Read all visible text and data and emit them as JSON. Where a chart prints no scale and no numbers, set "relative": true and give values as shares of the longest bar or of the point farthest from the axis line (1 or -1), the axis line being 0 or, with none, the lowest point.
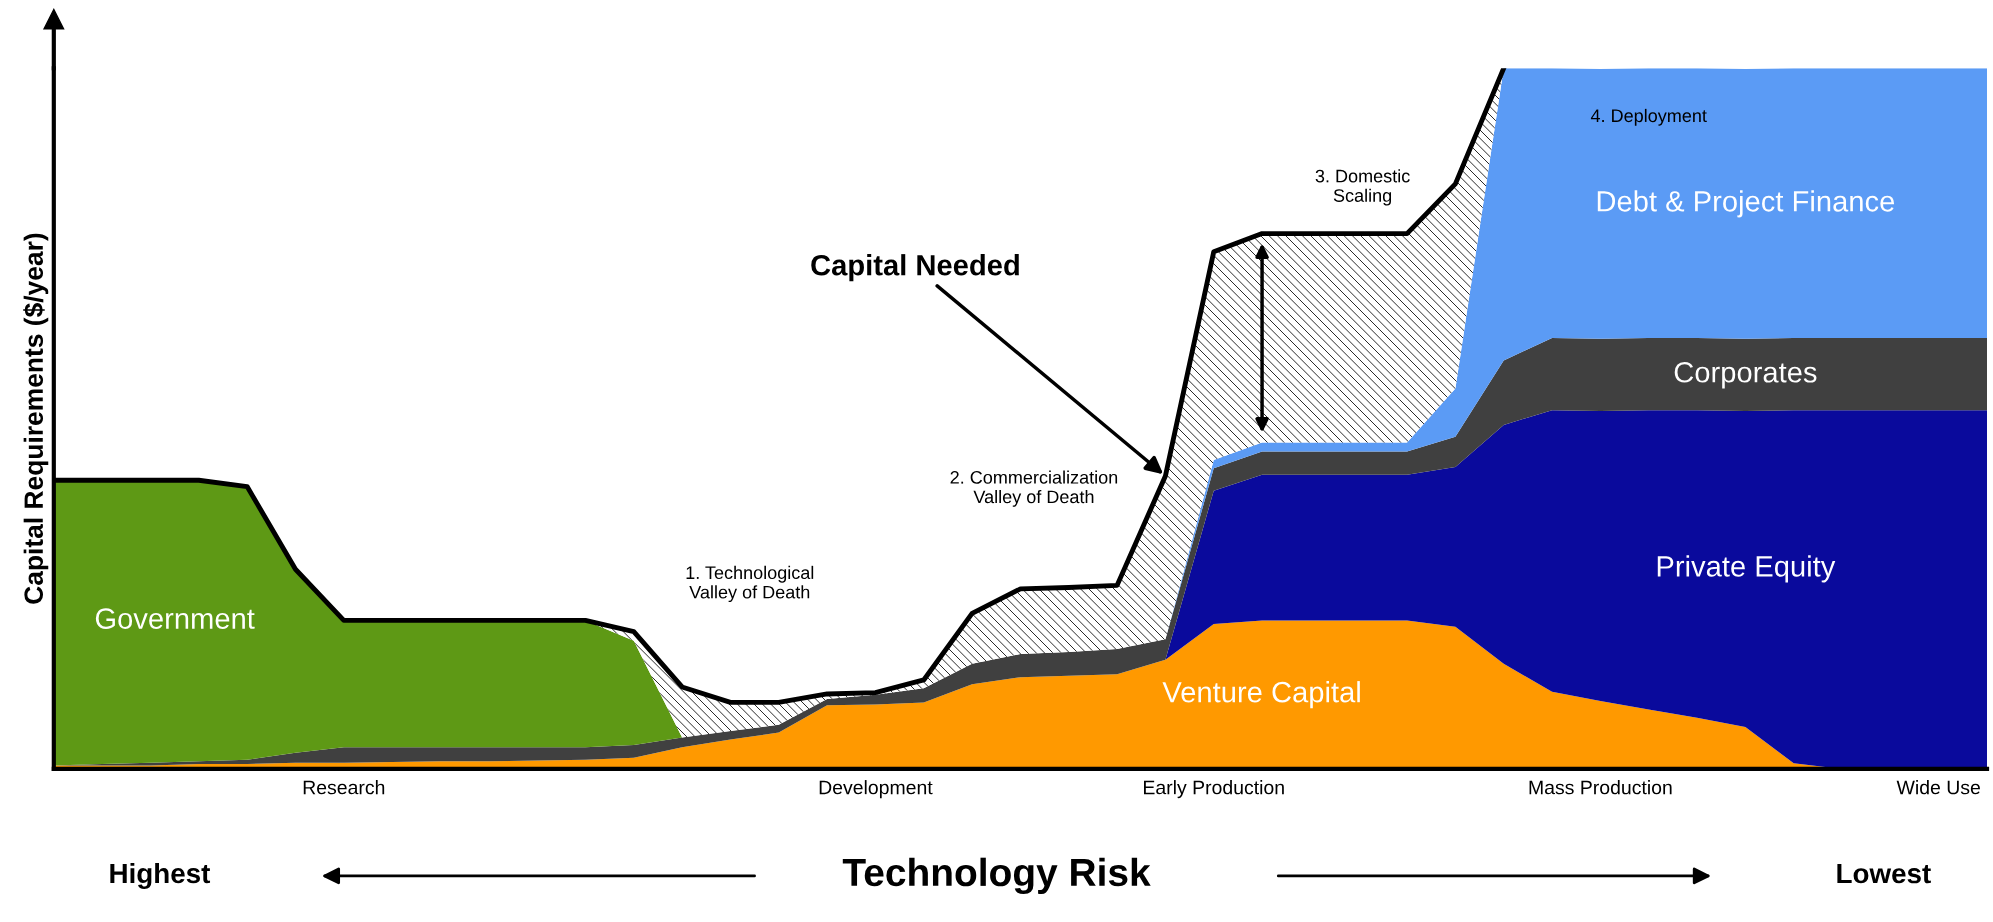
{
  "chart_data": {
    "type": "area",
    "stacked": true,
    "relative": true,
    "legend": false,
    "tick_labels": "x",
    "grid": false,
    "ylabel": "Capital Requirements ($/year)",
    "xlabel": "Technology Risk",
    "categories": [
      null,
      null,
      null,
      null,
      null,
      null,
      "Research",
      null,
      null,
      null,
      null,
      null,
      null,
      null,
      null,
      null,
      null,
      "Development",
      null,
      null,
      null,
      null,
      null,
      null,
      "Early Production",
      null,
      null,
      null,
      null,
      null,
      null,
      null,
      "Mass Production",
      null,
      null,
      null,
      null,
      null,
      null,
      "Wide Use",
      null
    ],
    "series": [
      {
        "name": "Venture Capital",
        "color": "#ff9900",
        "values": [
          0.005,
          0.005,
          0.005,
          0.007,
          0.007,
          0.009,
          0.009,
          0.01,
          0.011,
          0.011,
          0.012,
          0.013,
          0.016,
          0.031,
          0.042,
          0.052,
          0.091,
          0.092,
          0.095,
          0.121,
          0.131,
          0.133,
          0.135,
          0.156,
          0.207,
          0.212,
          0.212,
          0.212,
          0.212,
          0.203,
          0.15,
          0.11,
          0.097,
          0.085,
          0.073,
          0.06,
          0.008,
          0,
          null,
          null,
          null
        ]
      },
      {
        "name": "Private Equity",
        "color": "#0a0a9c",
        "values": [
          null,
          null,
          null,
          null,
          null,
          null,
          null,
          null,
          null,
          null,
          null,
          null,
          null,
          null,
          null,
          null,
          null,
          null,
          null,
          null,
          null,
          null,
          null,
          0,
          0.19,
          0.208,
          0.208,
          0.208,
          0.208,
          0.228,
          0.341,
          0.402,
          0.414,
          0.427,
          0.439,
          0.451,
          0.504,
          0.512,
          0.512,
          0.512,
          0.512
        ]
      },
      {
        "name": "Corporates",
        "color": "#404040",
        "values": [
          0,
          0.002,
          0.004,
          0.004,
          0.006,
          0.014,
          0.022,
          0.021,
          0.02,
          0.02,
          0.019,
          0.018,
          0.018,
          0.014,
          0.012,
          0.011,
          0.009,
          0.014,
          0.02,
          0.029,
          0.033,
          0.034,
          0.036,
          0.029,
          0.032,
          0.033,
          0.033,
          0.033,
          0.033,
          0.043,
          0.092,
          0.103,
          0.103,
          0.103,
          0.103,
          0.103,
          0.103,
          0.103,
          0.103,
          0.103,
          0.103
        ]
      },
      {
        "name": "Government",
        "color": "#5e9915",
        "values": [
          0.407,
          0.405,
          0.403,
          0.401,
          0.39,
          0.262,
          0.181,
          0.181,
          0.181,
          0.181,
          0.181,
          0.181,
          0.149,
          0,
          null,
          null,
          null,
          null,
          null,
          null,
          null,
          null,
          null,
          null,
          null,
          null,
          null,
          null,
          null,
          null,
          null,
          null,
          null,
          null,
          null,
          null,
          null,
          null,
          null,
          null,
          null
        ]
      },
      {
        "name": "Debt & Project Finance",
        "color": "#5b9bf5",
        "values": [
          null,
          null,
          null,
          null,
          null,
          null,
          null,
          null,
          null,
          null,
          null,
          null,
          null,
          null,
          null,
          null,
          null,
          null,
          null,
          null,
          null,
          null,
          null,
          0,
          0.012,
          0.013,
          0.013,
          0.013,
          0.013,
          0.069,
          0.417,
          0.385,
          0.385,
          0.385,
          0.385,
          0.385,
          0.385,
          0.385,
          0.385,
          0.385,
          0.385
        ]
      },
      {
        "name": "Capital Needed",
        "color": "#000000",
        "values": [
          0,
          0,
          0,
          0,
          0,
          0,
          0,
          0,
          0,
          0,
          0,
          0,
          0.013,
          0.072,
          0.041,
          0.032,
          0.007,
          0.003,
          0.012,
          0.072,
          0.093,
          0.092,
          0.091,
          0.233,
          0.297,
          0.298,
          0.298,
          0.298,
          0.298,
          0.292,
          0,
          null,
          null,
          null,
          null,
          null,
          null,
          null,
          null,
          null,
          null
        ]
      }
    ],
    "annotations": [
      "1. Technological\nValley of Death",
      "2. Commercialization\nValley of Death",
      "3. Domestic\nScaling",
      "4. Deployment",
      "Highest",
      "Lowest"
    ]
  }
}
